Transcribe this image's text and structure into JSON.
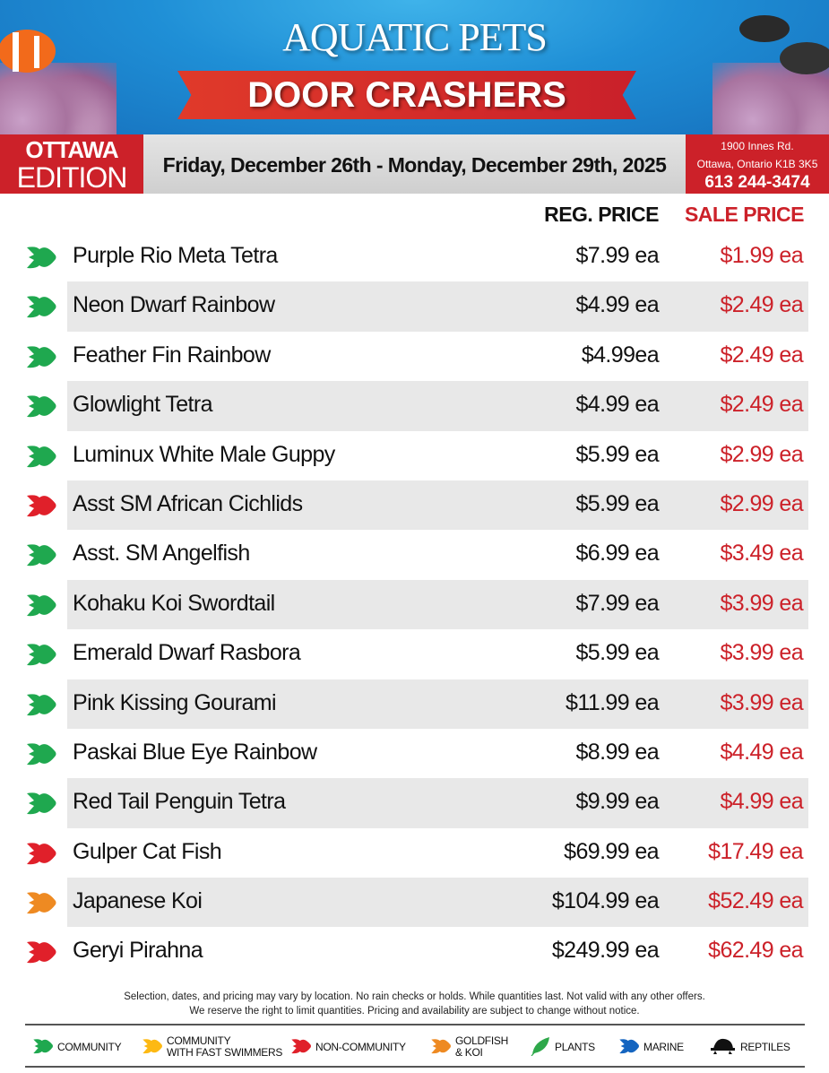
{
  "header": {
    "title": "AQUATIC PETS",
    "banner": "DOOR CRASHERS"
  },
  "band": {
    "edition_city": "OTTAWA",
    "edition_label": "EDITION",
    "dates": "Friday, December 26th - Monday, December 29th, 2025",
    "address_line1": "1900 Innes Rd.",
    "address_line2": "Ottawa, Ontario K1B 3K5",
    "phone": "613 244-3474"
  },
  "columns": {
    "reg": "REG. PRICE",
    "sale": "SALE PRICE"
  },
  "colors": {
    "community": "#1fa84f",
    "fast": "#fdb913",
    "non_community": "#e0202a",
    "goldfish": "#ee8a22",
    "plants": "#2ea84a",
    "marine": "#1565c0",
    "reptiles": "#111111",
    "sale": "#cc2129"
  },
  "items": [
    {
      "category": "community",
      "name": "Purple Rio Meta Tetra",
      "reg": "$7.99 ea",
      "sale": "$1.99 ea"
    },
    {
      "category": "community",
      "name": "Neon Dwarf Rainbow",
      "reg": "$4.99 ea",
      "sale": "$2.49 ea"
    },
    {
      "category": "community",
      "name": "Feather Fin Rainbow",
      "reg": "$4.99ea",
      "sale": "$2.49 ea"
    },
    {
      "category": "community",
      "name": "Glowlight Tetra",
      "reg": "$4.99 ea",
      "sale": "$2.49 ea"
    },
    {
      "category": "community",
      "name": "Luminux White Male Guppy",
      "reg": "$5.99 ea",
      "sale": "$2.99 ea"
    },
    {
      "category": "non_community",
      "name": "Asst SM African Cichlids",
      "reg": "$5.99 ea",
      "sale": "$2.99 ea"
    },
    {
      "category": "community",
      "name": "Asst. SM Angelfish",
      "reg": "$6.99 ea",
      "sale": "$3.49 ea"
    },
    {
      "category": "community",
      "name": "Kohaku Koi Swordtail",
      "reg": "$7.99 ea",
      "sale": "$3.99 ea"
    },
    {
      "category": "community",
      "name": "Emerald Dwarf Rasbora",
      "reg": "$5.99 ea",
      "sale": "$3.99 ea"
    },
    {
      "category": "community",
      "name": "Pink Kissing Gourami",
      "reg": "$11.99 ea",
      "sale": "$3.99 ea"
    },
    {
      "category": "community",
      "name": "Paskai Blue Eye Rainbow",
      "reg": "$8.99 ea",
      "sale": "$4.49 ea"
    },
    {
      "category": "community",
      "name": "Red Tail Penguin Tetra",
      "reg": "$9.99 ea",
      "sale": "$4.99 ea"
    },
    {
      "category": "non_community",
      "name": "Gulper Cat Fish",
      "reg": "$69.99 ea",
      "sale": "$17.49 ea"
    },
    {
      "category": "goldfish",
      "name": "Japanese Koi",
      "reg": "$104.99 ea",
      "sale": "$52.49 ea"
    },
    {
      "category": "non_community",
      "name": "Geryi Pirahna",
      "reg": "$249.99 ea",
      "sale": "$62.49 ea"
    }
  ],
  "disclaimer": {
    "line1": "Selection, dates, and pricing may vary by location. No rain checks or holds. While quantities last. Not valid with any other offers.",
    "line2": "We reserve the right to limit quantities. Pricing and availability are subject to change without notice."
  },
  "legend": [
    {
      "key": "community",
      "icon": "fish-icon",
      "line1": "COMMUNITY",
      "line2": ""
    },
    {
      "key": "fast",
      "icon": "fish-icon",
      "line1": "COMMUNITY",
      "line2": "WITH FAST SWIMMERS"
    },
    {
      "key": "non_community",
      "icon": "fish-icon",
      "line1": "NON-COMMUNITY",
      "line2": ""
    },
    {
      "key": "goldfish",
      "icon": "fish-icon",
      "line1": "GOLDFISH",
      "line2": "& KOI"
    },
    {
      "key": "plants",
      "icon": "leaf-icon",
      "line1": "PLANTS",
      "line2": ""
    },
    {
      "key": "marine",
      "icon": "fish-icon",
      "line1": "MARINE",
      "line2": ""
    },
    {
      "key": "reptiles",
      "icon": "turtle-icon",
      "line1": "REPTILES",
      "line2": ""
    }
  ]
}
